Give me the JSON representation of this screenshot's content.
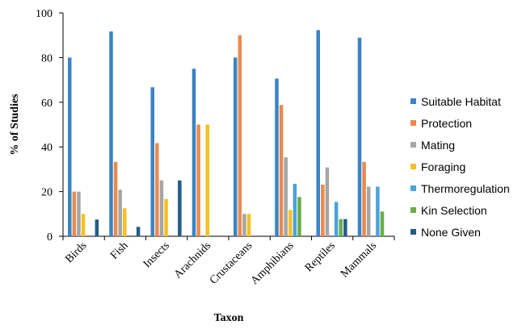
{
  "chart_data": {
    "type": "bar",
    "categories": [
      "Birds",
      "Fish",
      "Insects",
      "Arachnids",
      "Crustaceans",
      "Amphibians",
      "Reptiles",
      "Mammals"
    ],
    "series": [
      {
        "name": "Suitable Habitat",
        "color": "#3b83c4",
        "values": [
          80,
          91.7,
          66.7,
          75,
          80,
          70.6,
          92.3,
          88.9
        ]
      },
      {
        "name": "Protection",
        "color": "#e88a4f",
        "values": [
          20,
          33.3,
          41.7,
          50,
          90,
          58.8,
          23.1,
          33.3
        ]
      },
      {
        "name": "Mating",
        "color": "#a5a5a5",
        "values": [
          20,
          20.8,
          25,
          0,
          10,
          35.3,
          30.8,
          22.2
        ]
      },
      {
        "name": "Foraging",
        "color": "#f5c024",
        "values": [
          10,
          12.5,
          16.7,
          50,
          10,
          11.8,
          0,
          0
        ]
      },
      {
        "name": "Thermoregulation",
        "color": "#4aa3da",
        "values": [
          0,
          0,
          0,
          0,
          0,
          23.5,
          15.4,
          22.2
        ]
      },
      {
        "name": "Kin Selection",
        "color": "#6aad4a",
        "values": [
          0,
          0,
          0,
          0,
          0,
          17.6,
          7.7,
          11.1
        ]
      },
      {
        "name": "None Given",
        "color": "#235d87",
        "values": [
          7.5,
          4.2,
          25,
          0,
          0,
          0,
          7.7,
          0
        ]
      }
    ],
    "title": "",
    "xlabel": "Taxon",
    "ylabel": "% of Studies",
    "ylim": [
      0,
      100
    ],
    "yticks": [
      0,
      20,
      40,
      60,
      80,
      100
    ],
    "grid": false,
    "legend": "right"
  }
}
